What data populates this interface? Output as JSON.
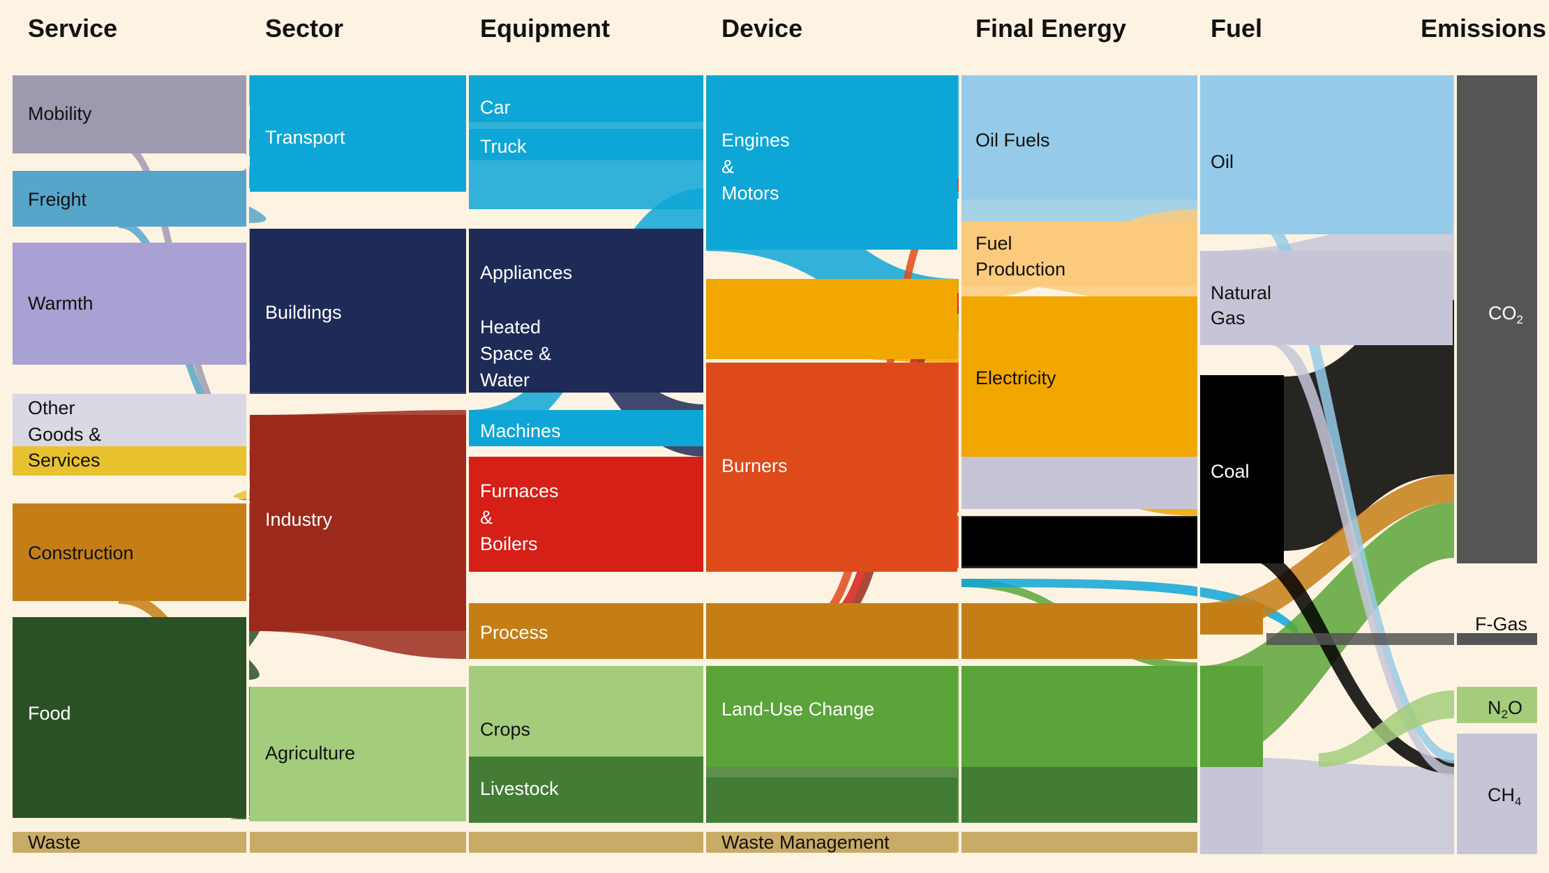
{
  "headers": {
    "service": "Service",
    "sector": "Sector",
    "equipment": "Equipment",
    "device": "Device",
    "final_energy": "Final Energy",
    "fuel": "Fuel",
    "emissions": "Emissions"
  },
  "service": {
    "mobility": "Mobility",
    "freight": "Freight",
    "warmth": "Warmth",
    "other_goods_line1": "Other",
    "other_goods_line2": "Goods &",
    "other_goods_line3": "Services",
    "construction": "Construction",
    "food": "Food",
    "waste": "Waste"
  },
  "sector": {
    "transport": "Transport",
    "buildings": "Buildings",
    "industry": "Industry",
    "agriculture": "Agriculture"
  },
  "equipment": {
    "car": "Car",
    "truck": "Truck",
    "appliances": "Appliances",
    "heated_line1": "Heated",
    "heated_line2": "Space &",
    "heated_line3": "Water",
    "machines": "Machines",
    "furnaces_line1": "Furnaces",
    "furnaces_line2": "&",
    "furnaces_line3": "Boilers",
    "process": "Process",
    "crops": "Crops",
    "livestock": "Livestock"
  },
  "device": {
    "engines_line1": "Engines",
    "engines_line2": "&",
    "engines_line3": "Motors",
    "burners": "Burners",
    "land_use_change": "Land-Use Change",
    "waste_management": "Waste Management"
  },
  "final_energy": {
    "oil_fuels": "Oil Fuels",
    "fuel_production_line1": "Fuel",
    "fuel_production_line2": "Production",
    "electricity": "Electricity"
  },
  "fuel": {
    "oil": "Oil",
    "natural_gas_line1": "Natural",
    "natural_gas_line2": "Gas",
    "coal": "Coal"
  },
  "emissions": {
    "co2_base": "CO",
    "co2_sub": "2",
    "fgas": "F-Gas",
    "n2o_base": "N",
    "n2o_sub": "2",
    "n2o_tail": "O",
    "ch4_base": "CH",
    "ch4_sub": "4"
  },
  "colors": {
    "background": "#fdf3e3",
    "mobility": "#9d9aaf",
    "freight": "#57a5c9",
    "warmth": "#a9a1d3",
    "other_goods": "#d9d8e3",
    "services": "#e8c22e",
    "construction": "#c57e16",
    "food": "#2a5124",
    "waste": "#c8ab66",
    "transport": "#0ea6d6",
    "buildings": "#1f2b57",
    "industry": "#9b2a1c",
    "agriculture": "#a3cd7c",
    "furnaces": "#d51f17",
    "process": "#c57e16",
    "livestock": "#437d35",
    "land_use": "#5aa43a",
    "burners": "#de4a1a",
    "electricity": "#f2a600",
    "fuel_production": "#fbca7d",
    "oil_fuels": "#95cbe8",
    "natural_gas": "#c6c5d8",
    "coal": "#000000",
    "co2": "#555555"
  }
}
